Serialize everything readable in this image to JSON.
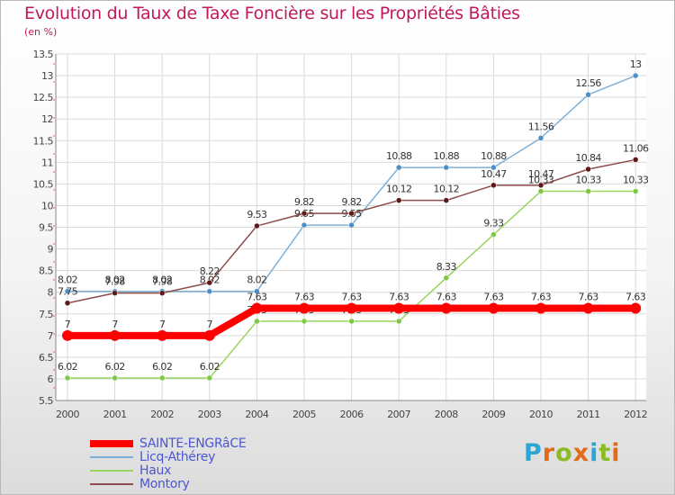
{
  "title": "Evolution du Taux de Taxe Foncière sur les Propriétés Bâties",
  "unit_label": "(en %)",
  "logo": {
    "text": "Proxiti",
    "letters": [
      "P",
      "r",
      "o",
      "x",
      "i",
      "t",
      "i"
    ],
    "colors": [
      "#2aa7d6",
      "#e26b1a",
      "#8dbb25",
      "#e26b1a",
      "#2aa7d6",
      "#8dbb25",
      "#e26b1a"
    ]
  },
  "chart_data": {
    "type": "line",
    "x": [
      "2000",
      "2001",
      "2002",
      "2003",
      "2004",
      "2005",
      "2006",
      "2007",
      "2008",
      "2009",
      "2010",
      "2011",
      "2012"
    ],
    "ylim": [
      5.5,
      13.5
    ],
    "yticks": [
      "5.5",
      "6",
      "6.5",
      "7",
      "7.5",
      "8",
      "8.5",
      "9",
      "9.5",
      "10",
      "10.5",
      "11",
      "11.5",
      "12",
      "12.5",
      "13",
      "13.5"
    ],
    "grid": true,
    "legend_position": "bottom-left",
    "series": [
      {
        "name": "Haux",
        "color": "#99d45c",
        "marker": "#7ec843",
        "width": 1.5,
        "values": [
          6.02,
          6.02,
          6.02,
          6.02,
          7.33,
          7.33,
          7.33,
          7.33,
          8.33,
          9.33,
          10.33,
          10.33,
          10.33
        ],
        "labels": [
          "6.02",
          "6.02",
          "6.02",
          "6.02",
          "7.33",
          "7.33",
          "7.33",
          "7.33",
          "8.33",
          "9.33",
          "10.33",
          "10.33",
          "10.33"
        ]
      },
      {
        "name": "Licq-Athérey",
        "color": "#7fb0d8",
        "marker": "#4b8fc9",
        "width": 1.5,
        "values": [
          8.02,
          8.02,
          8.02,
          8.02,
          8.02,
          9.55,
          9.55,
          10.88,
          10.88,
          10.88,
          11.56,
          12.56,
          13
        ],
        "labels": [
          "8.02",
          "8.02",
          "8.02",
          "8.02",
          "8.02",
          "9.55",
          "9.55",
          "10.88",
          "10.88",
          "10.88",
          "11.56",
          "12.56",
          "13"
        ]
      },
      {
        "name": "Montory",
        "color": "#8b4b4b",
        "marker": "#5e1a1a",
        "width": 1.5,
        "values": [
          7.75,
          7.98,
          7.98,
          8.22,
          9.53,
          9.82,
          9.82,
          10.12,
          10.12,
          10.47,
          10.47,
          10.84,
          11.06
        ],
        "labels": [
          "7.75",
          "7.98",
          "7.98",
          "8.22",
          "9.53",
          "9.82",
          "9.82",
          "10.12",
          "10.12",
          "10.47",
          "10.47",
          "10.84",
          "11.06"
        ]
      },
      {
        "name": "SAINTE-ENGRâCE",
        "color": "#ff0000",
        "marker": "#ff0000",
        "width": 8,
        "values": [
          7,
          7,
          7,
          7,
          7.63,
          7.63,
          7.63,
          7.63,
          7.63,
          7.63,
          7.63,
          7.63,
          7.63
        ],
        "labels": [
          "7",
          "7",
          "7",
          "7",
          "7.63",
          "7.63",
          "7.63",
          "7.63",
          "7.63",
          "7.63",
          "7.63",
          "7.63",
          "7.63"
        ]
      }
    ],
    "legend": [
      {
        "name": "SAINTE-ENGRâCE",
        "color": "#ff0000",
        "width": 8
      },
      {
        "name": "Licq-Athérey",
        "color": "#7fb0d8",
        "width": 2
      },
      {
        "name": "Haux",
        "color": "#99d45c",
        "width": 2
      },
      {
        "name": "Montory",
        "color": "#8b4b4b",
        "width": 2
      }
    ]
  }
}
